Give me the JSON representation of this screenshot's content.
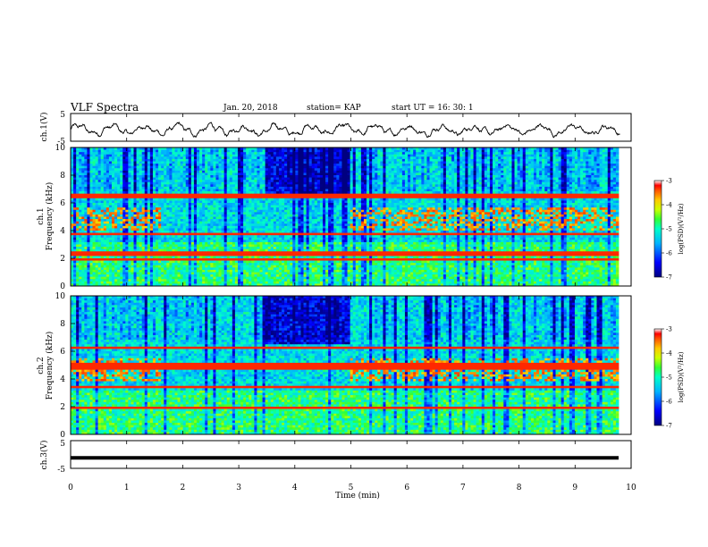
{
  "header": {
    "title": "VLF Spectra",
    "date": "Jan. 20, 2018",
    "station": "station= KAP",
    "start": "start  UT =   16: 30: 1"
  },
  "chart_data": [
    {
      "type": "line",
      "panel": "ch1-waveform",
      "ylabel": "ch.1(V)",
      "yticks": [
        "5",
        "-5"
      ],
      "ylim": [
        -5,
        5
      ],
      "xlim": [
        0,
        10
      ],
      "description_series": "noisy oscillation about roughly -1 V, amplitude ~2 V",
      "line_color": "#000000"
    },
    {
      "type": "heatmap",
      "panel": "ch1-spectrogram",
      "ylabel": "ch.1\nFrequency (kHz)",
      "yticks": [
        "0",
        "2",
        "4",
        "6",
        "8",
        "10"
      ],
      "ylim": [
        0,
        10
      ],
      "xlim": [
        0,
        10
      ],
      "colorbar": {
        "label": "log(PSD)(V²/Hz)",
        "ticks": [
          "-3",
          "-4",
          "-5",
          "-6",
          "-7"
        ],
        "range": [
          -7,
          -3
        ]
      },
      "features": {
        "strong_lines_khz": [
          3.7,
          2.4,
          2.2,
          1.9,
          6.5
        ],
        "hiss_band_khz": [
          4.0,
          5.6
        ],
        "quiet_interval_min": [
          3.5,
          5.0
        ]
      }
    },
    {
      "type": "heatmap",
      "panel": "ch2-spectrogram",
      "ylabel": "ch.2\nFrequency (kHz)",
      "yticks": [
        "0",
        "2",
        "4",
        "6",
        "8",
        "10"
      ],
      "ylim": [
        0,
        10
      ],
      "xlim": [
        0,
        10
      ],
      "colorbar": {
        "label": "log(PSD)(V²/Hz)",
        "ticks": [
          "-3",
          "-4",
          "-5",
          "-6",
          "-7"
        ],
        "range": [
          -7,
          -3
        ]
      },
      "features": {
        "strong_lines_khz": [
          4.7,
          5.0,
          1.9,
          3.4,
          6.3
        ],
        "hiss_band_khz": [
          3.9,
          5.5
        ],
        "quiet_interval_min": [
          3.5,
          5.0
        ]
      }
    },
    {
      "type": "line",
      "panel": "ch3-waveform",
      "ylabel": "ch.3(V)",
      "yticks": [
        "5",
        "-5"
      ],
      "ylim": [
        -5,
        5
      ],
      "xlim": [
        0,
        10
      ],
      "constant_value": -1.2,
      "line_color": "#000000"
    }
  ],
  "xaxis": {
    "label": "Time  (min)",
    "ticks": [
      "0",
      "1",
      "2",
      "3",
      "4",
      "5",
      "6",
      "7",
      "8",
      "9",
      "10"
    ]
  },
  "colors": {
    "cmap": [
      "#00007a",
      "#0033ff",
      "#00b4ff",
      "#00ffd8",
      "#55ff55",
      "#d8ff00",
      "#ffb400",
      "#ff3000",
      "#ff0000"
    ]
  }
}
